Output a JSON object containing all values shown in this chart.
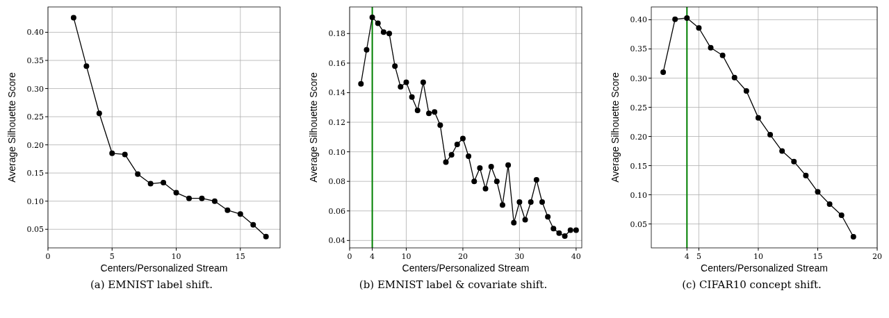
{
  "chart_data": [
    {
      "type": "line",
      "xlabel": "Centers/Personalized Stream",
      "ylabel": "Average Silhouette Score",
      "annotations": [
        "(a) EMNIST label shift."
      ],
      "x": [
        2,
        3,
        4,
        5,
        6,
        7,
        8,
        9,
        10,
        11,
        12,
        13,
        14,
        15,
        16,
        17
      ],
      "series": [
        {
          "color": "#000000",
          "values": [
            0.426,
            0.34,
            0.256,
            0.185,
            0.183,
            0.148,
            0.131,
            0.133,
            0.115,
            0.105,
            0.105,
            0.1,
            0.084,
            0.077,
            0.058,
            0.037
          ]
        }
      ],
      "xlim": [
        0,
        18.1
      ],
      "xticks": [
        0,
        5,
        10,
        15
      ],
      "ylim": [
        0.017,
        0.445
      ],
      "yticks": [
        0.05,
        {
          "value": 0.1,
          "label": "0.10"
        },
        0.15,
        {
          "value": 0.2,
          "label": "0.20"
        },
        0.25,
        {
          "value": 0.3,
          "label": "0.30"
        },
        0.35,
        {
          "value": 0.4,
          "label": "0.40"
        }
      ],
      "grid": true,
      "marker": "circle",
      "line_style": "solid"
    },
    {
      "type": "line",
      "xlabel": "Centers/Personalized Stream",
      "ylabel": "Average Silhouette Score",
      "annotations": [
        "(b) EMNIST label & covariate shift."
      ],
      "x": [
        2,
        3,
        4,
        5,
        6,
        7,
        8,
        9,
        10,
        11,
        12,
        13,
        14,
        15,
        16,
        17,
        18,
        19,
        20,
        21,
        22,
        23,
        24,
        25,
        26,
        27,
        28,
        29,
        30,
        31,
        32,
        33,
        34,
        35,
        36,
        37,
        38,
        39,
        40
      ],
      "series": [
        {
          "color": "#000000",
          "values": [
            0.146,
            0.169,
            0.191,
            0.187,
            0.181,
            0.18,
            0.158,
            0.144,
            0.147,
            0.137,
            0.128,
            0.147,
            0.126,
            0.127,
            0.118,
            0.093,
            0.098,
            0.105,
            0.109,
            0.097,
            0.08,
            0.089,
            0.075,
            0.09,
            0.08,
            0.064,
            0.091,
            0.052,
            0.066,
            0.054,
            0.066,
            0.081,
            0.066,
            0.056,
            0.048,
            0.045,
            0.043,
            0.047,
            0.047
          ]
        }
      ],
      "xlim": [
        0,
        41
      ],
      "xticks": [
        0,
        4,
        10,
        20,
        30,
        40
      ],
      "ylim": [
        0.035,
        0.198
      ],
      "yticks": [
        0.04,
        0.06,
        0.08,
        {
          "value": 0.1,
          "label": "0.10"
        },
        0.12,
        0.14,
        0.16,
        0.18
      ],
      "grid": true,
      "marker": "circle",
      "line_style": "solid",
      "ref_lines": [
        {
          "axis": "x",
          "value": 4,
          "color": "#008000"
        }
      ]
    },
    {
      "type": "line",
      "xlabel": "Centers/Personalized Stream",
      "ylabel": "Average Silhouette Score",
      "annotations": [
        "(c) CIFAR10 concept shift."
      ],
      "x": [
        2,
        3,
        4,
        5,
        6,
        7,
        8,
        9,
        10,
        11,
        12,
        13,
        14,
        15,
        16,
        17,
        18
      ],
      "series": [
        {
          "color": "#000000",
          "values": [
            0.31,
            0.401,
            0.403,
            0.386,
            0.352,
            0.339,
            0.301,
            0.278,
            0.232,
            0.203,
            0.175,
            0.157,
            0.133,
            0.105,
            0.084,
            0.065,
            0.028
          ]
        }
      ],
      "xlim": [
        1,
        20
      ],
      "xticks": [
        4,
        5,
        10,
        15,
        20
      ],
      "ylim": [
        0.009,
        0.422
      ],
      "yticks": [
        0.05,
        {
          "value": 0.1,
          "label": "0.10"
        },
        0.15,
        {
          "value": 0.2,
          "label": "0.20"
        },
        0.25,
        {
          "value": 0.3,
          "label": "0.30"
        },
        0.35,
        {
          "value": 0.4,
          "label": "0.40"
        }
      ],
      "grid": true,
      "marker": "circle",
      "line_style": "solid",
      "ref_lines": [
        {
          "axis": "x",
          "value": 4,
          "color": "#008000"
        }
      ]
    }
  ]
}
